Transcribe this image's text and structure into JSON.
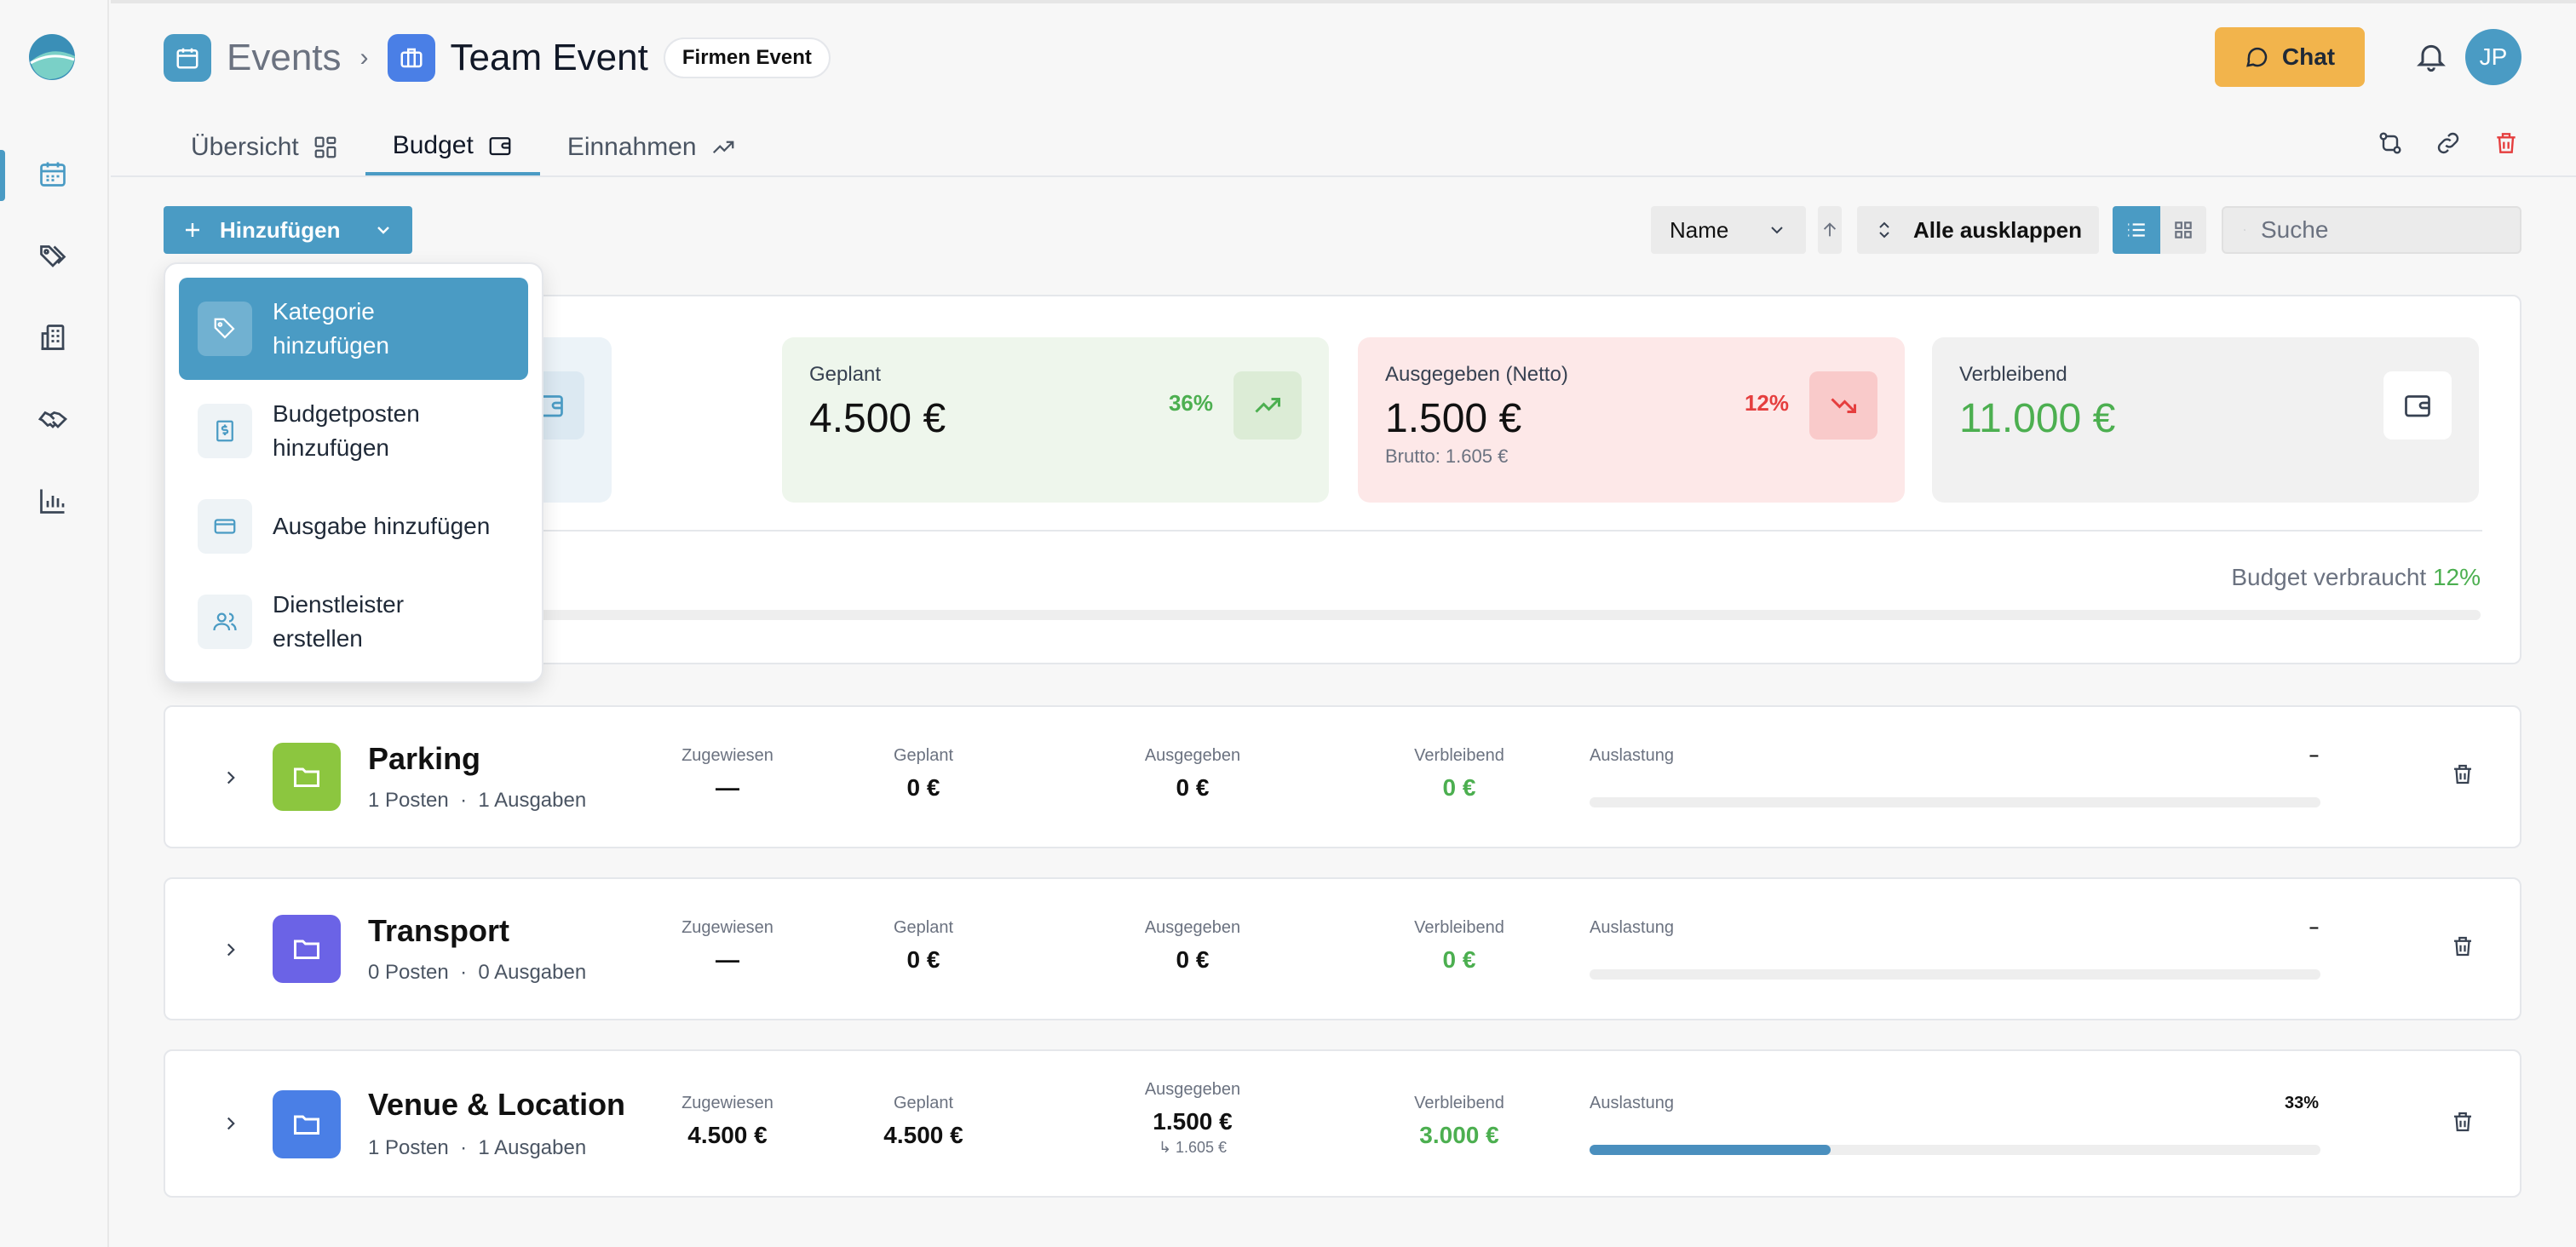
{
  "header": {
    "crumb_events": "Events",
    "crumb_event": "Team Event",
    "badge": "Firmen Event",
    "chat_label": "Chat",
    "avatar_initials": "JP"
  },
  "tabs": [
    {
      "label": "Übersicht"
    },
    {
      "label": "Budget"
    },
    {
      "label": "Einnahmen"
    }
  ],
  "toolbar": {
    "add_label": "Hinzufügen",
    "sort_value": "Name",
    "expand_label": "Alle ausklappen",
    "search_placeholder": "Suche"
  },
  "dropdown": {
    "items": [
      {
        "line1": "Kategorie",
        "line2": "hinzufügen"
      },
      {
        "line1": "Budgetposten",
        "line2": "hinzufügen"
      },
      {
        "line1": "Ausgabe hinzufügen",
        "line2": ""
      },
      {
        "line1": "Dienstleister",
        "line2": "erstellen"
      }
    ]
  },
  "summary": {
    "planned_label": "Geplant",
    "planned_value": "4.500 €",
    "planned_pct": "36%",
    "spent_label": "Ausgegeben (Netto)",
    "spent_value": "1.500 €",
    "spent_pct": "12%",
    "spent_gross": "Brutto: 1.605 €",
    "remaining_label": "Verbleibend",
    "remaining_value": "11.000 €",
    "used_label": "Budget verbraucht",
    "used_pct": "12%",
    "used_fraction": 0.12
  },
  "columns": {
    "assigned": "Zugewiesen",
    "planned": "Geplant",
    "spent": "Ausgegeben",
    "remaining": "Verbleibend",
    "utilization": "Auslastung"
  },
  "categories": [
    {
      "name": "Parking",
      "posts": "1 Posten",
      "expenses": "1 Ausgaben",
      "assigned": "—",
      "planned": "0 €",
      "spent": "0 €",
      "spent_gross": "",
      "remaining": "0 €",
      "util": "–",
      "util_fraction": 0,
      "color": "#8cc63f"
    },
    {
      "name": "Transport",
      "posts": "0 Posten",
      "expenses": "0 Ausgaben",
      "assigned": "—",
      "planned": "0 €",
      "spent": "0 €",
      "spent_gross": "",
      "remaining": "0 €",
      "util": "–",
      "util_fraction": 0,
      "color": "#6b63e6"
    },
    {
      "name": "Venue & Location",
      "posts": "1 Posten",
      "expenses": "1 Ausgaben",
      "assigned": "4.500 €",
      "planned": "4.500 €",
      "spent": "1.500 €",
      "spent_gross": "↳ 1.605 €",
      "remaining": "3.000 €",
      "util": "33%",
      "util_fraction": 0.33,
      "color": "#4a7fe6"
    }
  ],
  "colors": {
    "accent": "#4a9bc4",
    "chat": "#f2b44c",
    "green": "#4caf50",
    "red": "#e53e3e"
  }
}
